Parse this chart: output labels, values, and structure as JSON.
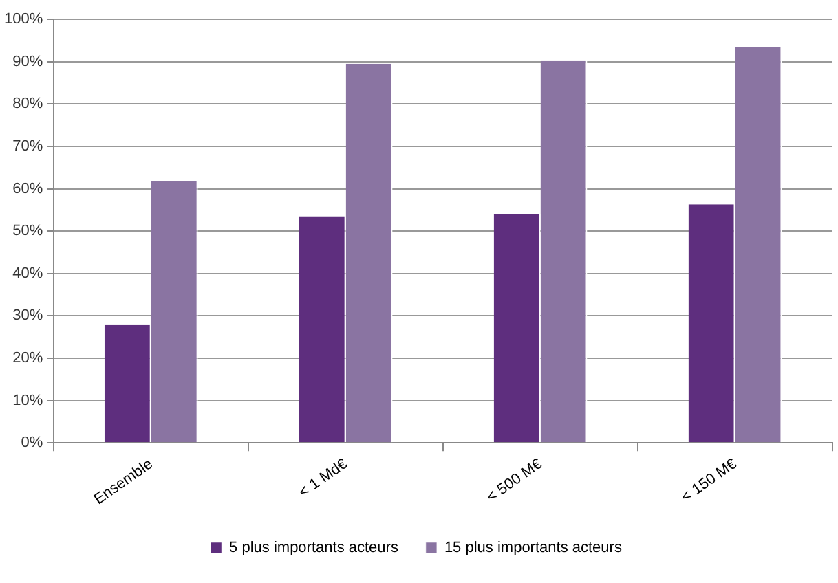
{
  "chart_data": {
    "type": "bar",
    "categories": [
      "Ensemble",
      "< 1 Md€",
      "< 500 M€",
      "< 150 M€"
    ],
    "series": [
      {
        "name": "5 plus importants acteurs",
        "color": "#5e2e7e",
        "values": [
          28,
          53.5,
          54,
          56.3
        ]
      },
      {
        "name": "15 plus importants acteurs",
        "color": "#8a74a2",
        "values": [
          61.8,
          89.5,
          90.3,
          93.5
        ]
      }
    ],
    "ylim": [
      0,
      100
    ],
    "yticks": [
      {
        "value": 0,
        "label": "0%"
      },
      {
        "value": 10,
        "label": "10%"
      },
      {
        "value": 20,
        "label": "20%"
      },
      {
        "value": 30,
        "label": "30%"
      },
      {
        "value": 40,
        "label": "40%"
      },
      {
        "value": 50,
        "label": "50%"
      },
      {
        "value": 60,
        "label": "60%"
      },
      {
        "value": 70,
        "label": "70%"
      },
      {
        "value": 80,
        "label": "80%"
      },
      {
        "value": 90,
        "label": "90%"
      },
      {
        "value": 100,
        "label": "100%"
      }
    ],
    "grid": "y",
    "legend": "bottom"
  }
}
